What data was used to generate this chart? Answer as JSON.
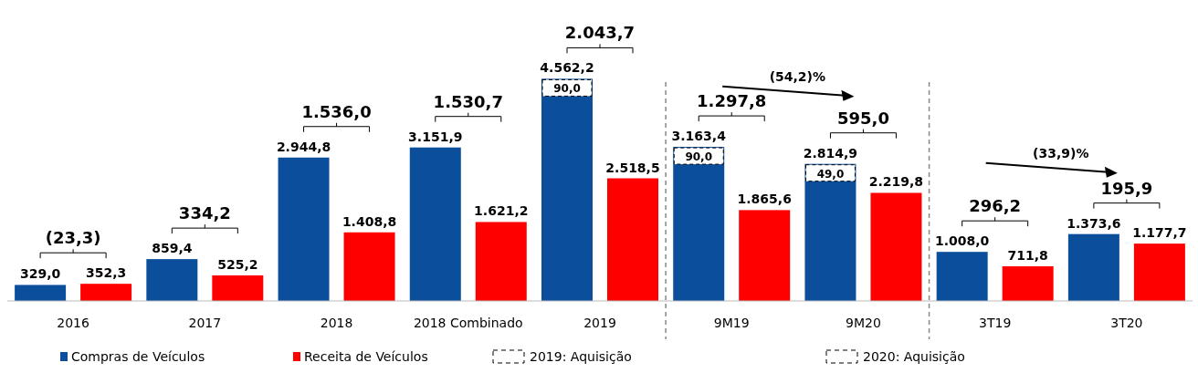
{
  "chart_data": {
    "type": "bar",
    "categories": [
      "2016",
      "2017",
      "2018",
      "2018 Combinado",
      "2019",
      "9M19",
      "9M20",
      "3T19",
      "3T20"
    ],
    "series": [
      {
        "name": "Compras de Veículos",
        "color": "#0b4f9c",
        "values": [
          329.0,
          859.4,
          2944.8,
          3151.9,
          4562.2,
          3163.4,
          2814.9,
          1008.0,
          1373.6
        ],
        "value_labels": [
          "329,0",
          "859,4",
          "2.944,8",
          "3.151,9",
          "4.562,2",
          "3.163,4",
          "2.814,9",
          "1.008,0",
          "1.373,6"
        ]
      },
      {
        "name": "Receita de Veículos",
        "color": "#ff0000",
        "values": [
          352.3,
          525.2,
          1408.8,
          1621.2,
          2518.5,
          1865.6,
          2219.8,
          711.8,
          1177.7
        ],
        "value_labels": [
          "352,3",
          "525,2",
          "1.408,8",
          "1.621,2",
          "2.518,5",
          "1.865,6",
          "2.219,8",
          "711,8",
          "1.177,7"
        ]
      }
    ],
    "annotations": [
      "(23,3)",
      "334,2",
      "1.536,0",
      "1.530,7",
      "2.043,7",
      "1.297,8",
      "595,0",
      "296,2",
      "195,9",
      "(54,2)%",
      "(33,9)%",
      "90,0",
      "90,0",
      "49,0",
      "2019: Aquisição",
      "2020: Aquisição"
    ],
    "tick_labels": "x",
    "legend": "bottom"
  }
}
